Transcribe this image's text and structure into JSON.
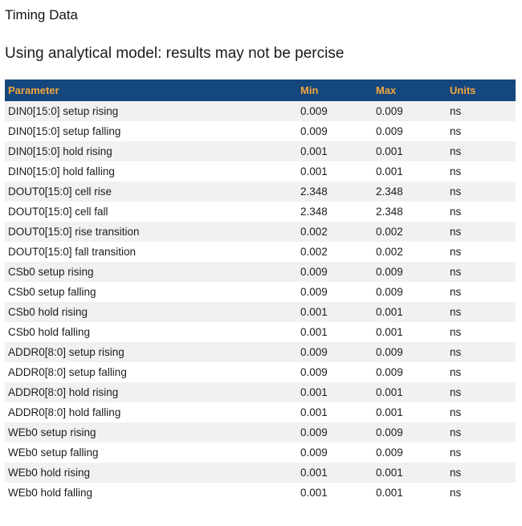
{
  "page": {
    "title": "Timing Data",
    "subtitle": "Using analytical model: results may not be percise"
  },
  "colors": {
    "header_bg": "#14477e",
    "header_text": "#f2a73e",
    "row_stripe": "#f0f2f2"
  },
  "table": {
    "columns": [
      "Parameter",
      "Min",
      "Max",
      "Units"
    ],
    "rows": [
      {
        "parameter": "DIN0[15:0] setup rising",
        "min": "0.009",
        "max": "0.009",
        "units": "ns"
      },
      {
        "parameter": "DIN0[15:0] setup falling",
        "min": "0.009",
        "max": "0.009",
        "units": "ns"
      },
      {
        "parameter": "DIN0[15:0] hold rising",
        "min": "0.001",
        "max": "0.001",
        "units": "ns"
      },
      {
        "parameter": "DIN0[15:0] hold falling",
        "min": "0.001",
        "max": "0.001",
        "units": "ns"
      },
      {
        "parameter": "DOUT0[15:0] cell rise",
        "min": "2.348",
        "max": "2.348",
        "units": "ns"
      },
      {
        "parameter": "DOUT0[15:0] cell fall",
        "min": "2.348",
        "max": "2.348",
        "units": "ns"
      },
      {
        "parameter": "DOUT0[15:0] rise transition",
        "min": "0.002",
        "max": "0.002",
        "units": "ns"
      },
      {
        "parameter": "DOUT0[15:0] fall transition",
        "min": "0.002",
        "max": "0.002",
        "units": "ns"
      },
      {
        "parameter": "CSb0 setup rising",
        "min": "0.009",
        "max": "0.009",
        "units": "ns"
      },
      {
        "parameter": "CSb0 setup falling",
        "min": "0.009",
        "max": "0.009",
        "units": "ns"
      },
      {
        "parameter": "CSb0 hold rising",
        "min": "0.001",
        "max": "0.001",
        "units": "ns"
      },
      {
        "parameter": "CSb0 hold falling",
        "min": "0.001",
        "max": "0.001",
        "units": "ns"
      },
      {
        "parameter": "ADDR0[8:0] setup rising",
        "min": "0.009",
        "max": "0.009",
        "units": "ns"
      },
      {
        "parameter": "ADDR0[8:0] setup falling",
        "min": "0.009",
        "max": "0.009",
        "units": "ns"
      },
      {
        "parameter": "ADDR0[8:0] hold rising",
        "min": "0.001",
        "max": "0.001",
        "units": "ns"
      },
      {
        "parameter": "ADDR0[8:0] hold falling",
        "min": "0.001",
        "max": "0.001",
        "units": "ns"
      },
      {
        "parameter": "WEb0 setup rising",
        "min": "0.009",
        "max": "0.009",
        "units": "ns"
      },
      {
        "parameter": "WEb0 setup falling",
        "min": "0.009",
        "max": "0.009",
        "units": "ns"
      },
      {
        "parameter": "WEb0 hold rising",
        "min": "0.001",
        "max": "0.001",
        "units": "ns"
      },
      {
        "parameter": "WEb0 hold falling",
        "min": "0.001",
        "max": "0.001",
        "units": "ns"
      }
    ]
  }
}
